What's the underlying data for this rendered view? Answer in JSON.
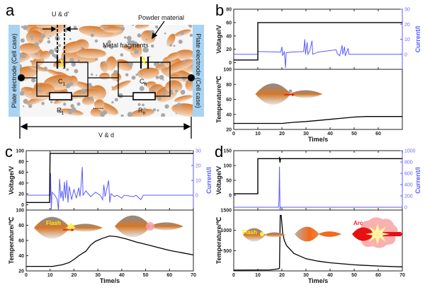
{
  "panel_labels": {
    "a": "a",
    "b": "b",
    "c": "c",
    "d": "d"
  },
  "schematic": {
    "gap_label": "U & d'",
    "powder_label": "Powder material",
    "fragments_label": "Metal fragments",
    "electrode_left": "Plate electrode (Cell case)",
    "electrode_right": "Plate electrode (Cell case)",
    "c1": {
      "main": "C",
      "sub": "1"
    },
    "cn": {
      "main": "C",
      "sub": "n"
    },
    "r1": {
      "main": "R",
      "sub": "1"
    },
    "rn": {
      "main": "R",
      "sub": "n"
    },
    "ellipsis": "......",
    "total_label": "V & d",
    "colors": {
      "electrode": "#a9d3f2",
      "fragment": "#d9782a",
      "powder": "#a8a8a8",
      "spark": "#ffee00",
      "fragments_text": "#e02020"
    }
  },
  "insets": {
    "flash": "Flash",
    "arc": "Arc"
  },
  "colors": {
    "voltage": "#000000",
    "current": "#5a5aff",
    "temperature": "#000000"
  },
  "chart_data": [
    {
      "panel": "b",
      "type": "line",
      "xlabel": "Time/s",
      "xlim": [
        0,
        70
      ],
      "xticks": [
        0,
        10,
        20,
        30,
        40,
        50,
        60
      ],
      "grid": false,
      "top": {
        "ylabel": "Voltage/V",
        "ylim": [
          -10,
          80
        ],
        "yticks": [
          0,
          20,
          40,
          60,
          80
        ],
        "y2label": "Current/I",
        "y2lim": [
          -10,
          30
        ],
        "y2ticks": [
          0,
          10,
          20,
          30
        ],
        "voltage": [
          [
            0,
            4
          ],
          [
            10,
            4
          ],
          [
            10,
            60
          ],
          [
            70,
            60
          ]
        ],
        "current": [
          [
            0,
            0
          ],
          [
            10,
            0
          ],
          [
            10,
            1.8
          ],
          [
            19.5,
            1.5
          ],
          [
            20,
            5
          ],
          [
            20.3,
            -1
          ],
          [
            21,
            2
          ],
          [
            21.5,
            -9
          ],
          [
            21.8,
            1
          ],
          [
            24,
            1.5
          ],
          [
            29,
            1.8
          ],
          [
            29.5,
            10
          ],
          [
            29.8,
            0
          ],
          [
            30.5,
            8
          ],
          [
            30.8,
            0
          ],
          [
            31.5,
            2
          ],
          [
            32.5,
            9
          ],
          [
            32.8,
            0
          ],
          [
            35,
            1.5
          ],
          [
            42.5,
            3
          ],
          [
            43,
            0.5
          ],
          [
            44,
            -1
          ],
          [
            45,
            6
          ],
          [
            45.3,
            0
          ],
          [
            46,
            5
          ],
          [
            46.3,
            -1
          ],
          [
            47.5,
            4
          ],
          [
            47.8,
            0
          ],
          [
            70,
            0
          ]
        ]
      },
      "bottom": {
        "ylabel": "Temperature/℃",
        "ylim": [
          20,
          100
        ],
        "yticks": [
          20,
          40,
          60,
          80,
          100
        ],
        "temperature": [
          [
            0,
            28
          ],
          [
            20,
            28
          ],
          [
            25,
            29.5
          ],
          [
            30,
            30.5
          ],
          [
            35,
            32
          ],
          [
            40,
            33.5
          ],
          [
            45,
            35
          ],
          [
            50,
            36.5
          ],
          [
            55,
            37.2
          ],
          [
            70,
            37.2
          ]
        ]
      }
    },
    {
      "panel": "c",
      "type": "line",
      "xlabel": "Time/s",
      "xlim": [
        0,
        70
      ],
      "xticks": [
        0,
        10,
        20,
        30,
        40,
        50,
        60,
        70
      ],
      "grid": false,
      "top": {
        "ylabel": "Voltage/V",
        "ylim": [
          -10,
          100
        ],
        "yticks": [
          0,
          20,
          40,
          60,
          80,
          100
        ],
        "y2label": "Current/I",
        "y2lim": [
          -10,
          30
        ],
        "y2ticks": [
          0,
          10,
          20,
          30
        ],
        "voltage": [
          [
            0,
            4
          ],
          [
            9.8,
            4
          ],
          [
            10,
            95
          ],
          [
            70,
            95
          ]
        ],
        "current": [
          [
            0,
            0
          ],
          [
            10,
            0
          ],
          [
            10.2,
            15
          ],
          [
            10.5,
            -10
          ],
          [
            10.8,
            2
          ],
          [
            12,
            0
          ],
          [
            13,
            -3
          ],
          [
            13.5,
            -10
          ],
          [
            14,
            11
          ],
          [
            14.5,
            -2
          ],
          [
            15,
            3
          ],
          [
            15.5,
            -4
          ],
          [
            16,
            9
          ],
          [
            16.5,
            -2
          ],
          [
            17,
            10
          ],
          [
            17.5,
            -5
          ],
          [
            18,
            6
          ],
          [
            19,
            -3
          ],
          [
            20,
            4
          ],
          [
            21,
            -2
          ],
          [
            22,
            5
          ],
          [
            22.5,
            -1
          ],
          [
            23,
            7
          ],
          [
            23.5,
            19
          ],
          [
            23.8,
            0
          ],
          [
            25,
            3
          ],
          [
            27,
            -1
          ],
          [
            29,
            2
          ],
          [
            31,
            0
          ],
          [
            32,
            -3
          ],
          [
            32.5,
            7
          ],
          [
            33,
            -1
          ],
          [
            34,
            6
          ],
          [
            34.5,
            10
          ],
          [
            35,
            -5
          ],
          [
            35.5,
            1
          ],
          [
            37,
            -1
          ],
          [
            38,
            0
          ],
          [
            40,
            -2
          ],
          [
            41,
            0
          ],
          [
            45,
            -1
          ],
          [
            46,
            0
          ],
          [
            48,
            -3
          ],
          [
            49,
            0
          ],
          [
            70,
            0
          ]
        ]
      },
      "bottom": {
        "ylabel": "Temperature/℃",
        "ylim": [
          20,
          100
        ],
        "yticks": [
          20,
          40,
          60,
          80,
          100
        ],
        "temperature": [
          [
            0,
            26
          ],
          [
            11,
            26
          ],
          [
            15,
            28
          ],
          [
            18,
            31
          ],
          [
            20,
            35
          ],
          [
            22,
            40
          ],
          [
            24,
            44
          ],
          [
            25,
            46
          ],
          [
            27,
            54
          ],
          [
            29,
            59
          ],
          [
            32,
            63
          ],
          [
            35,
            66
          ],
          [
            38,
            65
          ],
          [
            42,
            62
          ],
          [
            46,
            58
          ],
          [
            50,
            55
          ],
          [
            55,
            51
          ],
          [
            60,
            47
          ],
          [
            65,
            44
          ],
          [
            70,
            41
          ]
        ]
      }
    },
    {
      "panel": "d",
      "type": "line",
      "xlabel": "Time/s",
      "xlim": [
        0,
        70
      ],
      "xticks": [
        0,
        10,
        20,
        30,
        40,
        50,
        60,
        70
      ],
      "grid": false,
      "top": {
        "ylabel": "Voltage/V",
        "ylim": [
          -50,
          150
        ],
        "yticks": [
          0,
          50,
          100,
          150
        ],
        "y2label": "Current/I",
        "y2lim": [
          -50,
          1000
        ],
        "y2ticks": [
          0,
          200,
          400,
          600,
          800,
          1000
        ],
        "voltage": [
          [
            0,
            5
          ],
          [
            10,
            5
          ],
          [
            10,
            123
          ],
          [
            18.8,
            123
          ],
          [
            19,
            126
          ],
          [
            19.2,
            110
          ],
          [
            19.4,
            123
          ],
          [
            70,
            123
          ]
        ],
        "current": [
          [
            0,
            0
          ],
          [
            18.6,
            0
          ],
          [
            18.8,
            150
          ],
          [
            19,
            720
          ],
          [
            19.2,
            -40
          ],
          [
            19.5,
            0
          ],
          [
            70,
            0
          ]
        ]
      },
      "bottom": {
        "ylabel": "Temperature/℃",
        "ylim": [
          0,
          1500
        ],
        "yticks": [
          500,
          1000,
          1500
        ],
        "temperature": [
          [
            0,
            20
          ],
          [
            15,
            25
          ],
          [
            18.5,
            50
          ],
          [
            19,
            70
          ],
          [
            19.3,
            1370
          ],
          [
            19.7,
            1370
          ],
          [
            20.3,
            950
          ],
          [
            21,
            750
          ],
          [
            22,
            620
          ],
          [
            25,
            430
          ],
          [
            30,
            300
          ],
          [
            35,
            240
          ],
          [
            40,
            200
          ],
          [
            50,
            150
          ],
          [
            60,
            120
          ],
          [
            70,
            100
          ]
        ]
      }
    }
  ]
}
